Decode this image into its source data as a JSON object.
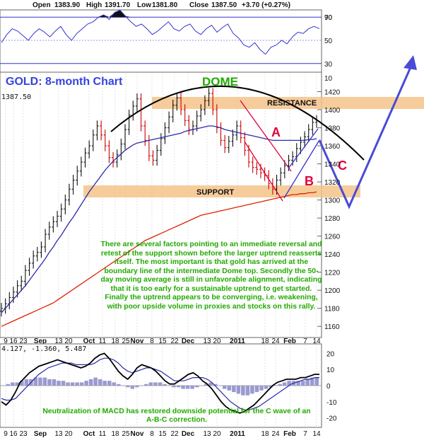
{
  "header": {
    "open_label": "Open",
    "open": "1383.90",
    "high_label": "High",
    "high": "1391.70",
    "low_label": "Low",
    "low": "1381.80",
    "close_label": "Close",
    "close": "1387.50",
    "change": "+3.70 (+0.27%)"
  },
  "colors": {
    "price_up": "#111111",
    "price_down": "#cc0000",
    "ma50": "#2b2ba8",
    "ma200": "#dd2200",
    "annotation_red": "#e0003c",
    "annotation_blue": "#3333cc",
    "callout_green": "#22aa00",
    "band_fill": "#f5c389",
    "title_blue": "#3344dd"
  },
  "annotations": {
    "title": "GOLD: 8-month Chart",
    "dome": "DOME",
    "resistance": "RESISTANCE",
    "support": "SUPPORT",
    "wave_a": "A",
    "wave_b": "B",
    "wave_c": "C",
    "main_text": "There are several factors pointing to an immediate reversal and retest of the support shown before the larger uptrend reasserts itself. The most important is that gold has arrived at the boundary line of the intermediate Dome top. Secondly the 50-day moving average is still in unfavorable alignment, indicating that it is too early for a sustainable uptrend to get started. Finally the uptrend appears to be converging, i.e. weakening, with poor upside volume in proxies and stocks on this rally.",
    "macd_text": "Neutralization of MACD has restored downside potential for the C wave of an A-B-C correction.",
    "last_price_tag": "1387.50",
    "macd_values": "4.127, -1.360, 5.487"
  },
  "chart_data": [
    {
      "type": "line",
      "panel": "rsi",
      "ylim": [
        25,
        75
      ],
      "yticks": [
        30,
        50,
        70
      ],
      "reference_lines": [
        30,
        50,
        70
      ],
      "series": [
        {
          "values": [
            48,
            55,
            60,
            58,
            54,
            50,
            56,
            60,
            57,
            53,
            58,
            62,
            55,
            50,
            56,
            60,
            64,
            66,
            70,
            72,
            68,
            74,
            76,
            71,
            66,
            62,
            64,
            60,
            55,
            58,
            62,
            66,
            60,
            58,
            62,
            64,
            58,
            55,
            60,
            63,
            57,
            61,
            64,
            56,
            52,
            46,
            44,
            48,
            42,
            38,
            44,
            46,
            50,
            47,
            53,
            57,
            56,
            60,
            62,
            60
          ]
        }
      ]
    },
    {
      "type": "line",
      "panel": "price",
      "ylim": [
        1150,
        1440
      ],
      "yticks": [
        1160,
        1180,
        1200,
        1220,
        1240,
        1260,
        1280,
        1300,
        1320,
        1340,
        1360,
        1380,
        1400,
        1420
      ],
      "x_tick_labels": [
        "9",
        "16",
        "23",
        "Sep",
        "13",
        "20",
        "Oct",
        "11",
        "18",
        "25",
        "Nov",
        "8",
        "15",
        "22",
        "Dec",
        "13",
        "20",
        "2011",
        "18",
        "24",
        "Feb",
        "7",
        "14"
      ],
      "series": [
        {
          "name": "price",
          "values": [
            1180,
            1185,
            1192,
            1198,
            1205,
            1210,
            1222,
            1230,
            1238,
            1242,
            1248,
            1262,
            1270,
            1276,
            1282,
            1290,
            1300,
            1312,
            1322,
            1332,
            1342,
            1352,
            1360,
            1372,
            1382,
            1372,
            1360,
            1347,
            1342,
            1350,
            1362,
            1378,
            1394,
            1404,
            1412,
            1382,
            1366,
            1349,
            1344,
            1355,
            1368,
            1380,
            1392,
            1405,
            1413,
            1400,
            1388,
            1378,
            1382,
            1393,
            1400,
            1410,
            1418,
            1400,
            1380,
            1366,
            1358,
            1365,
            1372,
            1382,
            1369,
            1355,
            1342,
            1336,
            1334,
            1330,
            1327,
            1318,
            1312,
            1322,
            1330,
            1338,
            1344,
            1348,
            1357,
            1364,
            1370,
            1378,
            1386,
            1388
          ]
        },
        {
          "name": "ma50",
          "values": [
            1175,
            1180,
            1185,
            1190,
            1195,
            1200,
            1205,
            1211,
            1217,
            1223,
            1229,
            1235,
            1242,
            1248,
            1255,
            1261,
            1268,
            1275,
            1281,
            1288,
            1295,
            1302,
            1309,
            1315,
            1321,
            1327,
            1333,
            1338,
            1343,
            1347,
            1351,
            1355,
            1358,
            1361,
            1363,
            1364,
            1365,
            1366,
            1367,
            1368,
            1369,
            1370,
            1371,
            1372,
            1373,
            1374,
            1376,
            1377,
            1378,
            1379,
            1380,
            1381,
            1382,
            1382,
            1381,
            1380,
            1378,
            1377,
            1376,
            1375,
            1374,
            1373,
            1372,
            1371,
            1370,
            1369,
            1368,
            1367,
            1366,
            1366,
            1366,
            1366,
            1366,
            1366,
            1366,
            1366,
            1366,
            1367,
            1367,
            1368
          ]
        },
        {
          "name": "ma200",
          "values": [
            1160,
            1162,
            1164,
            1166,
            1168,
            1170,
            1172,
            1174,
            1176,
            1178,
            1180,
            1182,
            1184,
            1186,
            1189,
            1192,
            1195,
            1198,
            1201,
            1204,
            1207,
            1210,
            1213,
            1216,
            1219,
            1222,
            1225,
            1228,
            1231,
            1234,
            1237,
            1240,
            1243,
            1246,
            1249,
            1252,
            1255,
            1257,
            1259,
            1261,
            1263,
            1265,
            1267,
            1269,
            1271,
            1273,
            1275,
            1277,
            1279,
            1281,
            1283,
            1284,
            1285,
            1286,
            1287,
            1288,
            1289,
            1290,
            1291,
            1292,
            1293,
            1294,
            1295,
            1296,
            1297,
            1298,
            1299,
            1300,
            1301,
            1302,
            1303,
            1304,
            1305,
            1306,
            1306,
            1307,
            1307,
            1308,
            1308,
            1309
          ]
        }
      ]
    },
    {
      "type": "bar",
      "panel": "macd",
      "ylim": [
        -25,
        25
      ],
      "yticks": [
        -20,
        -10,
        0,
        10,
        20
      ],
      "x_tick_labels": [
        "9",
        "16",
        "23",
        "Sep",
        "13",
        "20",
        "Oct",
        "11",
        "18",
        "25",
        "Nov",
        "8",
        "15",
        "22",
        "Dec",
        "13",
        "20",
        "2011",
        "18",
        "24",
        "Feb",
        "7",
        "14"
      ],
      "histogram": [
        0,
        1,
        2,
        2,
        3,
        4,
        4,
        5,
        5,
        5,
        4,
        4,
        3,
        3,
        2,
        2,
        2,
        2,
        3,
        4,
        5,
        4,
        3,
        3,
        2,
        1,
        0,
        -1,
        -2,
        -1,
        0,
        1,
        2,
        2,
        2,
        1,
        0,
        -1,
        -1,
        -2,
        -2,
        -2,
        -1,
        0,
        1,
        2,
        1,
        0,
        -2,
        -3,
        -4,
        -5,
        -6,
        -6,
        -5,
        -4,
        -3,
        -2,
        -1,
        0,
        1,
        2,
        3,
        3,
        3,
        3,
        4,
        5,
        5
      ],
      "series": [
        {
          "name": "macd",
          "values": [
            -10,
            -12,
            -9,
            -4,
            2,
            5,
            8,
            10,
            12,
            13,
            14,
            15,
            16,
            15,
            14,
            13,
            12,
            11,
            12,
            14,
            17,
            19,
            20,
            17,
            13,
            9,
            6,
            4,
            7,
            11,
            13,
            12,
            11,
            9,
            6,
            3,
            1,
            1,
            3,
            5,
            7,
            8,
            6,
            3,
            1,
            -2,
            -6,
            -10,
            -13,
            -15,
            -16,
            -17,
            -16,
            -14,
            -12,
            -9,
            -6,
            -3,
            0,
            2,
            3,
            4,
            4,
            4,
            5,
            5,
            6,
            7,
            7
          ]
        },
        {
          "name": "signal",
          "values": [
            -8,
            -9,
            -9,
            -8,
            -5,
            -2,
            1,
            4,
            7,
            9,
            11,
            12,
            13,
            14,
            14,
            14,
            13,
            13,
            13,
            13,
            14,
            16,
            17,
            17,
            16,
            14,
            11,
            9,
            8,
            9,
            10,
            11,
            11,
            10,
            9,
            7,
            5,
            3,
            3,
            3,
            4,
            5,
            5,
            5,
            4,
            2,
            -1,
            -4,
            -7,
            -10,
            -12,
            -14,
            -15,
            -15,
            -14,
            -13,
            -11,
            -9,
            -7,
            -5,
            -3,
            -1,
            1,
            2,
            3,
            4,
            4,
            5,
            5
          ]
        }
      ]
    }
  ]
}
